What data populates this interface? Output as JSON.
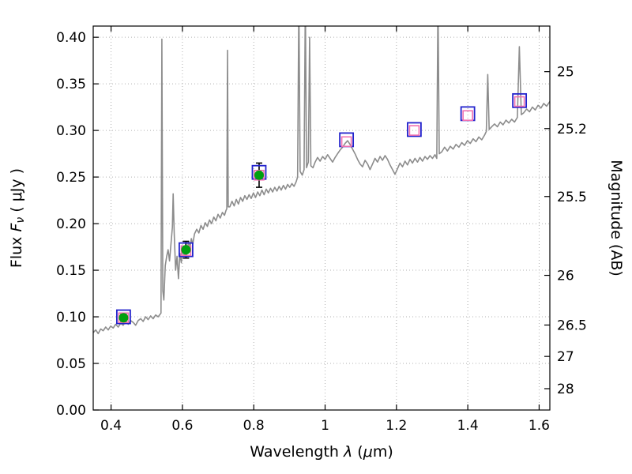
{
  "labels": {
    "wav_pre": "Wavelength  ",
    "wav_lambda": "λ",
    "wav_paren": " (",
    "wav_mu": "μ",
    "wav_post": "m)",
    "flux_pre": "Flux  ",
    "flux_F": "F",
    "flux_nu": "ν",
    "flux_post": "  ( μJy )",
    "mag": "Magnitude (AB)"
  },
  "chart_data": {
    "type": "line",
    "title": "",
    "xlabel": "Wavelength λ (μm)",
    "ylabel_left": "Flux Fν ( μJy )",
    "ylabel_right": "Magnitude (AB)",
    "xlim": [
      0.35,
      1.63
    ],
    "ylim": [
      0.0,
      0.412
    ],
    "grid": "dotted",
    "grid_color": "#b0b0b0",
    "frame_color": "#000000",
    "x_ticks": {
      "values": [
        0.4,
        0.6,
        0.8,
        1.0,
        1.2,
        1.4,
        1.6
      ],
      "labels": [
        "0.4",
        "0.6",
        "0.8",
        "1",
        "1.2",
        "1.4",
        "1.6"
      ]
    },
    "y_ticks_left": {
      "values": [
        0.0,
        0.05,
        0.1,
        0.15,
        0.2,
        0.25,
        0.3,
        0.35,
        0.4
      ],
      "labels": [
        "0.00",
        "0.05",
        "0.10",
        "0.15",
        "0.20",
        "0.25",
        "0.30",
        "0.35",
        "0.40"
      ]
    },
    "y_ticks_right": {
      "labels": [
        "25",
        "25.2",
        "25.5",
        "26",
        "26.5",
        "27",
        "28"
      ],
      "flux_values": [
        0.3631,
        0.302,
        0.2291,
        0.1445,
        0.0912,
        0.0575,
        0.0229
      ]
    },
    "series": [
      {
        "name": "model-spectrum",
        "kind": "line",
        "color": "#8c8c8c",
        "width": 1.6,
        "points": [
          [
            0.35,
            0.083
          ],
          [
            0.357,
            0.086
          ],
          [
            0.364,
            0.082
          ],
          [
            0.371,
            0.087
          ],
          [
            0.378,
            0.085
          ],
          [
            0.385,
            0.089
          ],
          [
            0.392,
            0.086
          ],
          [
            0.399,
            0.09
          ],
          [
            0.406,
            0.088
          ],
          [
            0.413,
            0.092
          ],
          [
            0.42,
            0.089
          ],
          [
            0.427,
            0.093
          ],
          [
            0.434,
            0.091
          ],
          [
            0.441,
            0.095
          ],
          [
            0.448,
            0.092
          ],
          [
            0.455,
            0.096
          ],
          [
            0.462,
            0.094
          ],
          [
            0.469,
            0.091
          ],
          [
            0.476,
            0.096
          ],
          [
            0.483,
            0.098
          ],
          [
            0.49,
            0.095
          ],
          [
            0.497,
            0.1
          ],
          [
            0.504,
            0.097
          ],
          [
            0.511,
            0.101
          ],
          [
            0.518,
            0.098
          ],
          [
            0.525,
            0.102
          ],
          [
            0.532,
            0.1
          ],
          [
            0.538,
            0.103
          ],
          [
            0.54,
            0.104
          ],
          [
            0.5425,
            0.398
          ],
          [
            0.545,
            0.128
          ],
          [
            0.548,
            0.118
          ],
          [
            0.552,
            0.155
          ],
          [
            0.556,
            0.165
          ],
          [
            0.56,
            0.172
          ],
          [
            0.564,
            0.16
          ],
          [
            0.568,
            0.178
          ],
          [
            0.572,
            0.196
          ],
          [
            0.574,
            0.232
          ],
          [
            0.577,
            0.19
          ],
          [
            0.581,
            0.15
          ],
          [
            0.585,
            0.165
          ],
          [
            0.589,
            0.141
          ],
          [
            0.593,
            0.168
          ],
          [
            0.597,
            0.158
          ],
          [
            0.601,
            0.174
          ],
          [
            0.605,
            0.166
          ],
          [
            0.609,
            0.178
          ],
          [
            0.613,
            0.169
          ],
          [
            0.617,
            0.181
          ],
          [
            0.621,
            0.174
          ],
          [
            0.625,
            0.184
          ],
          [
            0.629,
            0.178
          ],
          [
            0.634,
            0.189
          ],
          [
            0.64,
            0.194
          ],
          [
            0.646,
            0.19
          ],
          [
            0.652,
            0.198
          ],
          [
            0.658,
            0.194
          ],
          [
            0.664,
            0.201
          ],
          [
            0.67,
            0.197
          ],
          [
            0.676,
            0.204
          ],
          [
            0.682,
            0.2
          ],
          [
            0.688,
            0.207
          ],
          [
            0.694,
            0.203
          ],
          [
            0.7,
            0.21
          ],
          [
            0.706,
            0.206
          ],
          [
            0.712,
            0.212
          ],
          [
            0.718,
            0.209
          ],
          [
            0.722,
            0.214
          ],
          [
            0.7245,
            0.216
          ],
          [
            0.7265,
            0.386
          ],
          [
            0.7285,
            0.218
          ],
          [
            0.733,
            0.218
          ],
          [
            0.739,
            0.224
          ],
          [
            0.745,
            0.219
          ],
          [
            0.751,
            0.226
          ],
          [
            0.757,
            0.221
          ],
          [
            0.763,
            0.228
          ],
          [
            0.769,
            0.224
          ],
          [
            0.775,
            0.23
          ],
          [
            0.781,
            0.226
          ],
          [
            0.787,
            0.231
          ],
          [
            0.793,
            0.227
          ],
          [
            0.799,
            0.233
          ],
          [
            0.805,
            0.228
          ],
          [
            0.811,
            0.234
          ],
          [
            0.817,
            0.23
          ],
          [
            0.823,
            0.236
          ],
          [
            0.829,
            0.231
          ],
          [
            0.835,
            0.237
          ],
          [
            0.841,
            0.233
          ],
          [
            0.847,
            0.238
          ],
          [
            0.853,
            0.234
          ],
          [
            0.859,
            0.239
          ],
          [
            0.865,
            0.235
          ],
          [
            0.871,
            0.24
          ],
          [
            0.877,
            0.236
          ],
          [
            0.883,
            0.241
          ],
          [
            0.889,
            0.237
          ],
          [
            0.895,
            0.242
          ],
          [
            0.901,
            0.239
          ],
          [
            0.907,
            0.243
          ],
          [
            0.913,
            0.24
          ],
          [
            0.919,
            0.245
          ],
          [
            0.923,
            0.25
          ],
          [
            0.9265,
            0.44
          ],
          [
            0.93,
            0.256
          ],
          [
            0.936,
            0.252
          ],
          [
            0.941,
            0.258
          ],
          [
            0.9445,
            0.44
          ],
          [
            0.948,
            0.26
          ],
          [
            0.953,
            0.266
          ],
          [
            0.9565,
            0.4
          ],
          [
            0.96,
            0.262
          ],
          [
            0.966,
            0.26
          ],
          [
            0.972,
            0.266
          ],
          [
            0.979,
            0.271
          ],
          [
            0.986,
            0.267
          ],
          [
            0.993,
            0.272
          ],
          [
            1.0,
            0.269
          ],
          [
            1.007,
            0.274
          ],
          [
            1.014,
            0.27
          ],
          [
            1.021,
            0.266
          ],
          [
            1.028,
            0.271
          ],
          [
            1.035,
            0.275
          ],
          [
            1.042,
            0.279
          ],
          [
            1.049,
            0.282
          ],
          [
            1.056,
            0.286
          ],
          [
            1.063,
            0.289
          ],
          [
            1.07,
            0.285
          ],
          [
            1.077,
            0.28
          ],
          [
            1.084,
            0.275
          ],
          [
            1.091,
            0.269
          ],
          [
            1.098,
            0.264
          ],
          [
            1.105,
            0.261
          ],
          [
            1.112,
            0.268
          ],
          [
            1.119,
            0.264
          ],
          [
            1.126,
            0.258
          ],
          [
            1.133,
            0.264
          ],
          [
            1.14,
            0.27
          ],
          [
            1.147,
            0.266
          ],
          [
            1.154,
            0.272
          ],
          [
            1.161,
            0.268
          ],
          [
            1.168,
            0.273
          ],
          [
            1.175,
            0.269
          ],
          [
            1.182,
            0.263
          ],
          [
            1.189,
            0.258
          ],
          [
            1.196,
            0.253
          ],
          [
            1.203,
            0.259
          ],
          [
            1.21,
            0.265
          ],
          [
            1.217,
            0.261
          ],
          [
            1.224,
            0.267
          ],
          [
            1.231,
            0.263
          ],
          [
            1.238,
            0.269
          ],
          [
            1.245,
            0.265
          ],
          [
            1.252,
            0.27
          ],
          [
            1.259,
            0.266
          ],
          [
            1.266,
            0.271
          ],
          [
            1.273,
            0.267
          ],
          [
            1.28,
            0.272
          ],
          [
            1.287,
            0.269
          ],
          [
            1.294,
            0.273
          ],
          [
            1.301,
            0.27
          ],
          [
            1.308,
            0.274
          ],
          [
            1.313,
            0.27
          ],
          [
            1.3165,
            0.44
          ],
          [
            1.32,
            0.275
          ],
          [
            1.327,
            0.277
          ],
          [
            1.335,
            0.282
          ],
          [
            1.343,
            0.278
          ],
          [
            1.351,
            0.283
          ],
          [
            1.359,
            0.28
          ],
          [
            1.367,
            0.285
          ],
          [
            1.375,
            0.282
          ],
          [
            1.383,
            0.287
          ],
          [
            1.391,
            0.284
          ],
          [
            1.399,
            0.289
          ],
          [
            1.407,
            0.286
          ],
          [
            1.415,
            0.291
          ],
          [
            1.423,
            0.288
          ],
          [
            1.431,
            0.293
          ],
          [
            1.439,
            0.29
          ],
          [
            1.447,
            0.295
          ],
          [
            1.452,
            0.299
          ],
          [
            1.456,
            0.36
          ],
          [
            1.46,
            0.301
          ],
          [
            1.467,
            0.304
          ],
          [
            1.475,
            0.307
          ],
          [
            1.483,
            0.304
          ],
          [
            1.491,
            0.309
          ],
          [
            1.499,
            0.306
          ],
          [
            1.507,
            0.311
          ],
          [
            1.515,
            0.308
          ],
          [
            1.523,
            0.312
          ],
          [
            1.531,
            0.309
          ],
          [
            1.539,
            0.314
          ],
          [
            1.5445,
            0.39
          ],
          [
            1.55,
            0.317
          ],
          [
            1.557,
            0.319
          ],
          [
            1.565,
            0.323
          ],
          [
            1.573,
            0.32
          ],
          [
            1.581,
            0.325
          ],
          [
            1.589,
            0.322
          ],
          [
            1.597,
            0.327
          ],
          [
            1.605,
            0.324
          ],
          [
            1.613,
            0.329
          ],
          [
            1.621,
            0.326
          ],
          [
            1.63,
            0.331
          ]
        ]
      },
      {
        "name": "model-photometry-squares",
        "kind": "square",
        "color": "#2222cc",
        "size": 17,
        "stroke_width": 1.8,
        "points": [
          [
            0.435,
            0.1
          ],
          [
            0.61,
            0.172
          ],
          [
            0.815,
            0.255
          ],
          [
            1.06,
            0.29
          ],
          [
            1.25,
            0.301
          ],
          [
            1.4,
            0.318
          ],
          [
            1.545,
            0.332
          ]
        ]
      },
      {
        "name": "band-averaged-squares",
        "kind": "square",
        "color": "#f070b0",
        "size": 12,
        "stroke_width": 1.6,
        "points": [
          [
            0.435,
            0.099
          ],
          [
            0.61,
            0.171
          ],
          [
            0.815,
            0.252
          ],
          [
            1.06,
            0.288
          ],
          [
            1.25,
            0.3
          ],
          [
            1.4,
            0.316
          ],
          [
            1.545,
            0.331
          ]
        ]
      },
      {
        "name": "observed-photometry-circles",
        "kind": "circle-errorbar",
        "color": "#00a010",
        "error_color": "#000000",
        "radius": 6,
        "points": [
          [
            0.435,
            0.099,
            0.004
          ],
          [
            0.61,
            0.172,
            0.009
          ],
          [
            0.815,
            0.252,
            0.013
          ]
        ]
      }
    ]
  }
}
